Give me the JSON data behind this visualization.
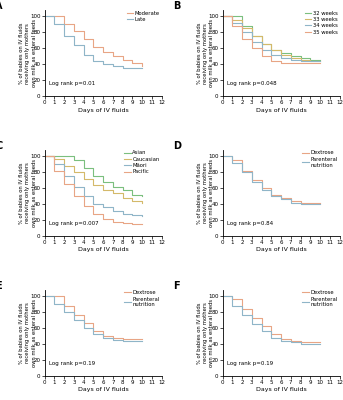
{
  "panel_labels": [
    "A",
    "B",
    "C",
    "D",
    "E",
    "F"
  ],
  "ylabel": "% of babies on IV fluids\nreceiving only mothers\nown milk as enteral feeds",
  "xlabel": "Days of IV fluids",
  "xlim": [
    0,
    12
  ],
  "ylim": [
    0,
    105
  ],
  "xticks": [
    0,
    1,
    2,
    3,
    4,
    5,
    6,
    7,
    8,
    9,
    10,
    11,
    12
  ],
  "yticks": [
    0,
    20,
    40,
    60,
    80,
    100
  ],
  "panelA": {
    "log_rank": "Log rank p=0.01",
    "series": [
      {
        "label": "Moderate",
        "color": "#E8A585",
        "x": [
          0,
          1,
          2,
          3,
          4,
          5,
          6,
          7,
          8,
          9,
          10
        ],
        "y": [
          100,
          100,
          90,
          82,
          72,
          62,
          56,
          50,
          45,
          42,
          38
        ]
      },
      {
        "label": "Late",
        "color": "#8FB5C8",
        "x": [
          0,
          1,
          2,
          3,
          4,
          5,
          6,
          7,
          8,
          9,
          10
        ],
        "y": [
          100,
          90,
          76,
          64,
          52,
          44,
          40,
          38,
          36,
          35,
          35
        ]
      }
    ]
  },
  "panelB": {
    "log_rank": "Log rank p=0.048",
    "series": [
      {
        "label": "32 weeks",
        "color": "#7BBF7E",
        "x": [
          0,
          1,
          2,
          3,
          4,
          5,
          6,
          7,
          8,
          9,
          10
        ],
        "y": [
          100,
          100,
          88,
          75,
          65,
          58,
          54,
          50,
          48,
          46,
          46
        ]
      },
      {
        "label": "33 weeks",
        "color": "#D4B96A",
        "x": [
          0,
          1,
          2,
          3,
          4,
          5,
          6,
          7,
          8,
          9,
          10
        ],
        "y": [
          100,
          95,
          85,
          75,
          65,
          58,
          52,
          48,
          46,
          44,
          44
        ]
      },
      {
        "label": "34 weeks",
        "color": "#8FB5C8",
        "x": [
          0,
          1,
          2,
          3,
          4,
          5,
          6,
          7,
          8,
          9,
          10
        ],
        "y": [
          100,
          92,
          80,
          68,
          58,
          52,
          48,
          46,
          44,
          44,
          44
        ]
      },
      {
        "label": "35 weeks",
        "color": "#E8A585",
        "x": [
          0,
          1,
          2,
          3,
          4,
          5,
          6,
          7,
          8,
          9,
          10
        ],
        "y": [
          100,
          88,
          72,
          60,
          50,
          44,
          42,
          42,
          42,
          42,
          42
        ]
      }
    ]
  },
  "panelC": {
    "log_rank": "Log rank p=0.007",
    "series": [
      {
        "label": "Asian",
        "color": "#7BBF7E",
        "x": [
          0,
          1,
          2,
          3,
          4,
          5,
          6,
          7,
          8,
          9,
          10
        ],
        "y": [
          100,
          100,
          100,
          95,
          85,
          75,
          68,
          62,
          58,
          52,
          50
        ]
      },
      {
        "label": "Caucasian",
        "color": "#D4B96A",
        "x": [
          0,
          1,
          2,
          3,
          4,
          5,
          6,
          7,
          8,
          9,
          10
        ],
        "y": [
          100,
          96,
          88,
          80,
          72,
          64,
          58,
          54,
          48,
          44,
          42
        ]
      },
      {
        "label": "Māori",
        "color": "#8FB5C8",
        "x": [
          0,
          1,
          2,
          3,
          4,
          5,
          6,
          7,
          8,
          9,
          10
        ],
        "y": [
          100,
          90,
          75,
          62,
          50,
          40,
          36,
          32,
          28,
          26,
          25
        ]
      },
      {
        "label": "Pacific",
        "color": "#E8A585",
        "x": [
          0,
          1,
          2,
          3,
          4,
          5,
          6,
          7,
          8,
          9,
          10
        ],
        "y": [
          100,
          82,
          65,
          50,
          38,
          28,
          22,
          18,
          16,
          15,
          15
        ]
      }
    ]
  },
  "panelD": {
    "log_rank": "Log rank p=0.84",
    "series": [
      {
        "label": "Dextrose",
        "color": "#E8A585",
        "x": [
          0,
          1,
          2,
          3,
          4,
          5,
          6,
          7,
          8,
          9,
          10
        ],
        "y": [
          100,
          95,
          82,
          70,
          60,
          52,
          48,
          44,
          42,
          42,
          42
        ]
      },
      {
        "label": "Parenteral\nnutrition",
        "color": "#8FB5C8",
        "x": [
          0,
          1,
          2,
          3,
          4,
          5,
          6,
          7,
          8,
          9,
          10
        ],
        "y": [
          100,
          92,
          80,
          68,
          58,
          50,
          46,
          42,
          40,
          40,
          40
        ]
      }
    ]
  },
  "panelE": {
    "log_rank": "Log rank p=0.19",
    "series": [
      {
        "label": "Dextrose",
        "color": "#E8A585",
        "x": [
          0,
          1,
          2,
          3,
          4,
          5,
          6,
          7,
          8,
          9,
          10
        ],
        "y": [
          100,
          100,
          88,
          76,
          66,
          56,
          50,
          48,
          46,
          46,
          46
        ]
      },
      {
        "label": "Parenteral\nnutrition",
        "color": "#8FB5C8",
        "x": [
          0,
          1,
          2,
          3,
          4,
          5,
          6,
          7,
          8,
          9,
          10
        ],
        "y": [
          100,
          90,
          80,
          70,
          60,
          52,
          48,
          45,
          44,
          44,
          44
        ]
      }
    ]
  },
  "panelF": {
    "log_rank": "Log rank p=0.19",
    "series": [
      {
        "label": "Dextrose",
        "color": "#E8A585",
        "x": [
          0,
          1,
          2,
          3,
          4,
          5,
          6,
          7,
          8,
          9,
          10
        ],
        "y": [
          100,
          96,
          84,
          72,
          62,
          52,
          46,
          44,
          42,
          42,
          42
        ]
      },
      {
        "label": "Parenteral\nnutrition",
        "color": "#8FB5C8",
        "x": [
          0,
          1,
          2,
          3,
          4,
          5,
          6,
          7,
          8,
          9,
          10
        ],
        "y": [
          100,
          88,
          76,
          65,
          56,
          48,
          44,
          42,
          40,
          40,
          40
        ]
      }
    ]
  }
}
